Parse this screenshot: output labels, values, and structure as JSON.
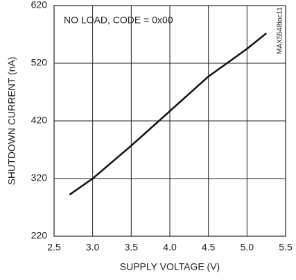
{
  "chart_data": {
    "type": "line",
    "x_label": "SUPPLY VOLTAGE (V)",
    "y_label": "SHUTDOWN CURRENT (nA)",
    "annotations": [
      "NO LOAD, CODE = 0x00",
      "MAX5548toc11"
    ],
    "x": [
      2.7,
      3.0,
      3.5,
      4.0,
      4.5,
      5.0,
      5.25
    ],
    "series": [
      {
        "name": "shutdown current",
        "color": "#111111",
        "values": [
          292,
          320,
          377,
          437,
          497,
          545,
          572
        ]
      }
    ],
    "xlim": [
      2.5,
      5.5
    ],
    "xticks": [
      {
        "value": 2.5,
        "label": "2.5"
      },
      {
        "value": 3.0,
        "label": "3.0"
      },
      {
        "value": 3.5,
        "label": "3.5"
      },
      {
        "value": 4.0,
        "label": "4.0"
      },
      {
        "value": 4.5,
        "label": "4.5"
      },
      {
        "value": 5.0,
        "label": "5.0"
      },
      {
        "value": 5.5,
        "label": "5.5"
      }
    ],
    "ylim": [
      220,
      620
    ],
    "yticks": [
      220,
      320,
      420,
      520,
      620
    ],
    "grid": true
  }
}
